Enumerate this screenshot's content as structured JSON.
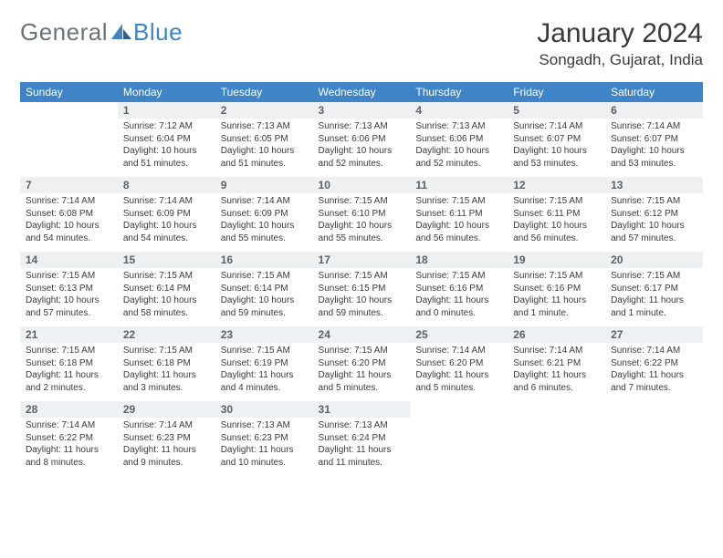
{
  "brand": {
    "part1": "General",
    "part2": "Blue"
  },
  "title": "January 2024",
  "location": "Songadh, Gujarat, India",
  "colors": {
    "header_bg": "#3e84c6",
    "header_text": "#ffffff",
    "daynum_bg": "#eef0f1",
    "daynum_text": "#5b6266",
    "rule": "#3e6ea0",
    "body_text": "#3a3a3a",
    "logo_gray": "#6a7278",
    "logo_blue": "#3e84c6"
  },
  "day_names": [
    "Sunday",
    "Monday",
    "Tuesday",
    "Wednesday",
    "Thursday",
    "Friday",
    "Saturday"
  ],
  "weeks": [
    [
      null,
      {
        "n": "1",
        "sr": "7:12 AM",
        "ss": "6:04 PM",
        "dl": "10 hours and 51 minutes."
      },
      {
        "n": "2",
        "sr": "7:13 AM",
        "ss": "6:05 PM",
        "dl": "10 hours and 51 minutes."
      },
      {
        "n": "3",
        "sr": "7:13 AM",
        "ss": "6:06 PM",
        "dl": "10 hours and 52 minutes."
      },
      {
        "n": "4",
        "sr": "7:13 AM",
        "ss": "6:06 PM",
        "dl": "10 hours and 52 minutes."
      },
      {
        "n": "5",
        "sr": "7:14 AM",
        "ss": "6:07 PM",
        "dl": "10 hours and 53 minutes."
      },
      {
        "n": "6",
        "sr": "7:14 AM",
        "ss": "6:07 PM",
        "dl": "10 hours and 53 minutes."
      }
    ],
    [
      {
        "n": "7",
        "sr": "7:14 AM",
        "ss": "6:08 PM",
        "dl": "10 hours and 54 minutes."
      },
      {
        "n": "8",
        "sr": "7:14 AM",
        "ss": "6:09 PM",
        "dl": "10 hours and 54 minutes."
      },
      {
        "n": "9",
        "sr": "7:14 AM",
        "ss": "6:09 PM",
        "dl": "10 hours and 55 minutes."
      },
      {
        "n": "10",
        "sr": "7:15 AM",
        "ss": "6:10 PM",
        "dl": "10 hours and 55 minutes."
      },
      {
        "n": "11",
        "sr": "7:15 AM",
        "ss": "6:11 PM",
        "dl": "10 hours and 56 minutes."
      },
      {
        "n": "12",
        "sr": "7:15 AM",
        "ss": "6:11 PM",
        "dl": "10 hours and 56 minutes."
      },
      {
        "n": "13",
        "sr": "7:15 AM",
        "ss": "6:12 PM",
        "dl": "10 hours and 57 minutes."
      }
    ],
    [
      {
        "n": "14",
        "sr": "7:15 AM",
        "ss": "6:13 PM",
        "dl": "10 hours and 57 minutes."
      },
      {
        "n": "15",
        "sr": "7:15 AM",
        "ss": "6:14 PM",
        "dl": "10 hours and 58 minutes."
      },
      {
        "n": "16",
        "sr": "7:15 AM",
        "ss": "6:14 PM",
        "dl": "10 hours and 59 minutes."
      },
      {
        "n": "17",
        "sr": "7:15 AM",
        "ss": "6:15 PM",
        "dl": "10 hours and 59 minutes."
      },
      {
        "n": "18",
        "sr": "7:15 AM",
        "ss": "6:16 PM",
        "dl": "11 hours and 0 minutes."
      },
      {
        "n": "19",
        "sr": "7:15 AM",
        "ss": "6:16 PM",
        "dl": "11 hours and 1 minute."
      },
      {
        "n": "20",
        "sr": "7:15 AM",
        "ss": "6:17 PM",
        "dl": "11 hours and 1 minute."
      }
    ],
    [
      {
        "n": "21",
        "sr": "7:15 AM",
        "ss": "6:18 PM",
        "dl": "11 hours and 2 minutes."
      },
      {
        "n": "22",
        "sr": "7:15 AM",
        "ss": "6:18 PM",
        "dl": "11 hours and 3 minutes."
      },
      {
        "n": "23",
        "sr": "7:15 AM",
        "ss": "6:19 PM",
        "dl": "11 hours and 4 minutes."
      },
      {
        "n": "24",
        "sr": "7:15 AM",
        "ss": "6:20 PM",
        "dl": "11 hours and 5 minutes."
      },
      {
        "n": "25",
        "sr": "7:14 AM",
        "ss": "6:20 PM",
        "dl": "11 hours and 5 minutes."
      },
      {
        "n": "26",
        "sr": "7:14 AM",
        "ss": "6:21 PM",
        "dl": "11 hours and 6 minutes."
      },
      {
        "n": "27",
        "sr": "7:14 AM",
        "ss": "6:22 PM",
        "dl": "11 hours and 7 minutes."
      }
    ],
    [
      {
        "n": "28",
        "sr": "7:14 AM",
        "ss": "6:22 PM",
        "dl": "11 hours and 8 minutes."
      },
      {
        "n": "29",
        "sr": "7:14 AM",
        "ss": "6:23 PM",
        "dl": "11 hours and 9 minutes."
      },
      {
        "n": "30",
        "sr": "7:13 AM",
        "ss": "6:23 PM",
        "dl": "11 hours and 10 minutes."
      },
      {
        "n": "31",
        "sr": "7:13 AM",
        "ss": "6:24 PM",
        "dl": "11 hours and 11 minutes."
      },
      null,
      null,
      null
    ]
  ],
  "labels": {
    "sunrise": "Sunrise:",
    "sunset": "Sunset:",
    "daylight": "Daylight:"
  }
}
